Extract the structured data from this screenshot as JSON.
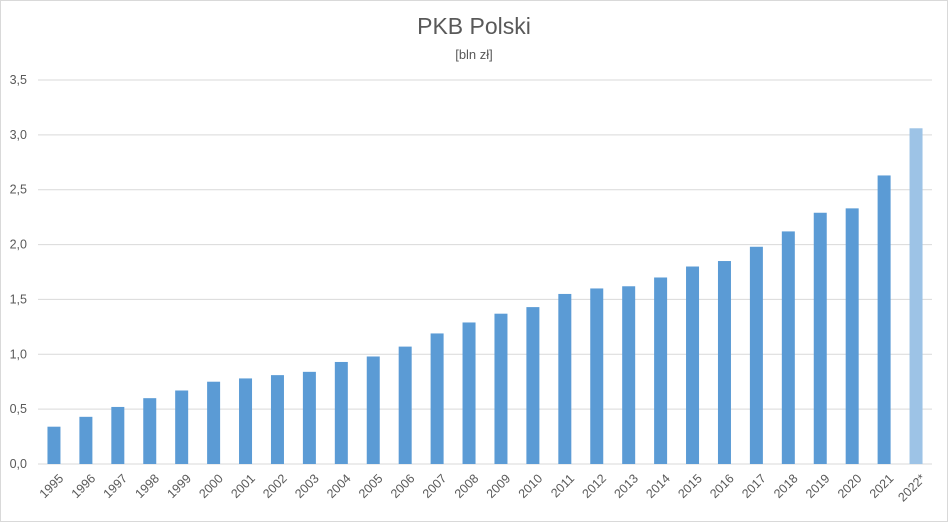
{
  "chart_data": {
    "type": "bar",
    "title": "PKB Polski",
    "subtitle": "[bln zł]",
    "xlabel": "",
    "ylabel": "",
    "ylim": [
      0,
      3.5
    ],
    "yticks": [
      "0,0",
      "0,5",
      "1,0",
      "1,5",
      "2,0",
      "2,5",
      "3,0",
      "3,5"
    ],
    "gridlines": true,
    "categories": [
      "1995",
      "1996",
      "1997",
      "1998",
      "1999",
      "2000",
      "2001",
      "2002",
      "2003",
      "2004",
      "2005",
      "2006",
      "2007",
      "2008",
      "2009",
      "2010",
      "2011",
      "2012",
      "2013",
      "2014",
      "2015",
      "2016",
      "2017",
      "2018",
      "2019",
      "2020",
      "2021",
      "2022*"
    ],
    "values": [
      0.34,
      0.43,
      0.52,
      0.6,
      0.67,
      0.75,
      0.78,
      0.81,
      0.84,
      0.93,
      0.98,
      1.07,
      1.19,
      1.29,
      1.37,
      1.43,
      1.55,
      1.6,
      1.62,
      1.7,
      1.8,
      1.85,
      1.98,
      2.12,
      2.29,
      2.33,
      2.63,
      3.06
    ],
    "colors": {
      "bar": "#5b9bd5",
      "bar_estimate": "#9dc3e6",
      "grid": "#d9d9d9",
      "text": "#595959"
    },
    "estimate_categories": [
      "2022*"
    ]
  }
}
